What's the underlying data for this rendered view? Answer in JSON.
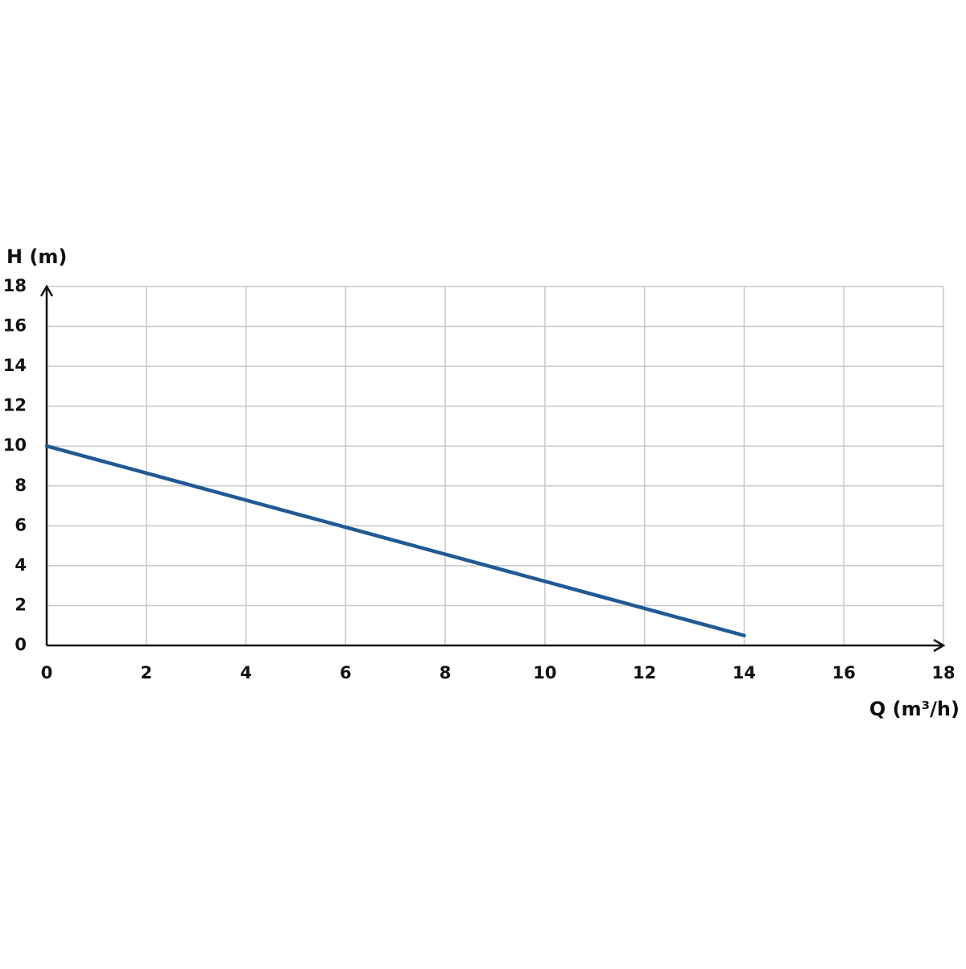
{
  "chart_data": {
    "type": "line",
    "y_label": "H (m)",
    "x_label": "Q (m³/h)",
    "x": [
      0,
      14
    ],
    "series": [
      {
        "color": "#1f5a96",
        "values": [
          10,
          0.5
        ]
      }
    ],
    "xlim": [
      0,
      18
    ],
    "xticks": [
      0,
      2,
      4,
      6,
      8,
      10,
      12,
      14,
      16,
      18
    ],
    "ylim": [
      0,
      18
    ],
    "yticks": [
      0,
      2,
      4,
      6,
      8,
      10,
      12,
      14,
      16,
      18
    ],
    "grid": true
  }
}
